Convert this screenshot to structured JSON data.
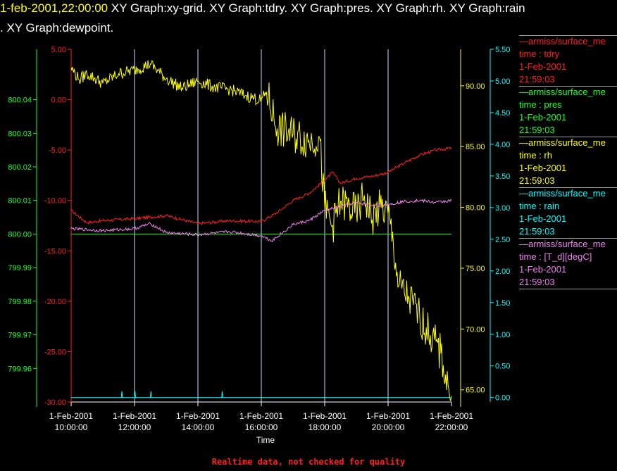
{
  "header": {
    "timestamp": "1-feb-2001,22:00:00",
    "line1": "XY Graph:xy-grid.  XY Graph:tdry.  XY Graph:pres.  XY Graph:rh.  XY Graph:rain",
    "line2": ".  XY Graph:dewpoint."
  },
  "legend": [
    {
      "source": "—armiss/surface_me",
      "label": "time : tdry",
      "date": "1-Feb-2001",
      "time": "21:59:03",
      "color": "#ff2020"
    },
    {
      "source": "—armiss/surface_me",
      "label": "time : pres",
      "date": "1-Feb-2001",
      "time": "21:59:03",
      "color": "#20ff20"
    },
    {
      "source": "—armiss/surface_me",
      "label": "time : rh",
      "date": "1-Feb-2001",
      "time": "21:59:03",
      "color": "#ffff00"
    },
    {
      "source": "—armiss/surface_me",
      "label": "time : rain",
      "date": "1-Feb-2001",
      "time": "21:59:03",
      "color": "#00ffff"
    },
    {
      "source": "—armiss/surface_me",
      "label": "time : [T_d][degC]",
      "date": "1-Feb-2001",
      "time": "21:59:03",
      "color": "#ee82ee"
    }
  ],
  "footer_note": "Realtime data, not checked for quality",
  "footer_color": "#ff2020",
  "chart_data": {
    "type": "line",
    "xlabel": "Time",
    "x_ticks": [
      {
        "date": "1-Feb-2001",
        "time": "10:00:00"
      },
      {
        "date": "1-Feb-2001",
        "time": "12:00:00"
      },
      {
        "date": "1-Feb-2001",
        "time": "14:00:00"
      },
      {
        "date": "1-Feb-2001",
        "time": "16:00:00"
      },
      {
        "date": "1-Feb-2001",
        "time": "18:00:00"
      },
      {
        "date": "1-Feb-2001",
        "time": "20:00:00"
      },
      {
        "date": "1-Feb-2001",
        "time": "22:00:00"
      }
    ],
    "xlim": [
      "1-Feb-2001 10:00",
      "1-Feb-2001 22:00"
    ],
    "grid": true,
    "axes": {
      "pres": {
        "color": "#20ff20",
        "side": "left-outer",
        "ylim": [
          799.95,
          800.055
        ],
        "ticks": [
          "799.96",
          "799.97",
          "799.98",
          "799.99",
          "800.00",
          "800.01",
          "800.02",
          "800.03",
          "800.04"
        ]
      },
      "tdry": {
        "color": "#ff2020",
        "side": "left-inner",
        "ylim": [
          -30,
          5
        ],
        "ticks": [
          "-30.00",
          "-25.00",
          "-20.00",
          "-15.00",
          "-10.00",
          "-5.00",
          "0.00",
          "5.00"
        ]
      },
      "rh": {
        "color": "#ffff00",
        "side": "right-inner",
        "ylim": [
          64,
          93
        ],
        "ticks": [
          "65.00",
          "70.00",
          "75.00",
          "80.00",
          "85.00",
          "90.00"
        ]
      },
      "rain": {
        "color": "#00ffff",
        "side": "right-outer",
        "ylim": [
          -0.07,
          5.5
        ],
        "ticks": [
          "0.00",
          "0.50",
          "1.00",
          "1.50",
          "2.00",
          "2.50",
          "3.00",
          "3.50",
          "4.00",
          "4.50",
          "5.00",
          "5.50"
        ]
      }
    },
    "series": [
      {
        "name": "tdry",
        "axis": "tdry",
        "color": "#ff2020",
        "time": [
          "10:00",
          "10:30",
          "11:00",
          "12:00",
          "13:00",
          "14:00",
          "15:00",
          "16:00",
          "16:30",
          "17:00",
          "17:30",
          "18:00",
          "18:15",
          "18:30",
          "19:00",
          "19:30",
          "20:00",
          "20:30",
          "21:00",
          "21:30",
          "22:00"
        ],
        "values": [
          -11.0,
          -12.2,
          -12.0,
          -11.8,
          -11.5,
          -12.3,
          -12.0,
          -12.1,
          -11.2,
          -10.0,
          -9.3,
          -8.0,
          -7.2,
          -8.3,
          -7.8,
          -7.6,
          -7.2,
          -6.3,
          -5.5,
          -5.0,
          -4.8
        ]
      },
      {
        "name": "pres",
        "axis": "pres",
        "color": "#20ff20",
        "time": [
          "10:00",
          "22:00"
        ],
        "values": [
          800.0,
          800.0
        ]
      },
      {
        "name": "rh",
        "axis": "rh",
        "color": "#ffff00",
        "time": [
          "10:00",
          "10:15",
          "10:30",
          "11:00",
          "11:30",
          "12:00",
          "12:30",
          "13:00",
          "13:30",
          "14:00",
          "14:30",
          "15:00",
          "15:30",
          "16:00",
          "16:10",
          "16:30",
          "17:00",
          "17:30",
          "17:50",
          "18:00",
          "18:15",
          "18:30",
          "19:00",
          "19:15",
          "19:30",
          "19:45",
          "20:00",
          "20:10",
          "20:20",
          "20:40",
          "21:00",
          "21:20",
          "21:40",
          "21:55",
          "22:00"
        ],
        "values": [
          91.5,
          90.5,
          91.0,
          90.2,
          91.0,
          91.3,
          91.8,
          90.6,
          89.8,
          90.4,
          89.9,
          89.7,
          89.2,
          88.8,
          89.5,
          86.5,
          86.0,
          85.5,
          85.8,
          80.0,
          78.5,
          80.5,
          79.5,
          81.0,
          79.0,
          80.0,
          79.5,
          77.0,
          73.5,
          72.5,
          71.0,
          69.5,
          68.0,
          65.0,
          64.5
        ]
      },
      {
        "name": "rain",
        "axis": "rain",
        "color": "#00ffff",
        "time": [
          "10:00",
          "11:35",
          "11:36",
          "11:37",
          "12:00",
          "12:01",
          "12:02",
          "12:30",
          "12:31",
          "12:32",
          "14:45",
          "14:46",
          "14:47",
          "22:00"
        ],
        "values": [
          0.0,
          0.0,
          0.1,
          0.0,
          0.0,
          0.1,
          0.0,
          0.0,
          0.1,
          0.0,
          0.0,
          0.1,
          0.0,
          0.0
        ]
      },
      {
        "name": "[T_d][degC]",
        "axis": "tdry",
        "color": "#ee82ee",
        "time": [
          "10:00",
          "11:00",
          "12:00",
          "12:30",
          "13:00",
          "14:00",
          "15:00",
          "16:00",
          "16:20",
          "17:00",
          "17:30",
          "18:00",
          "18:30",
          "19:00",
          "19:30",
          "20:00",
          "20:30",
          "21:00",
          "21:30",
          "22:00"
        ],
        "values": [
          -12.8,
          -13.0,
          -12.8,
          -12.3,
          -13.2,
          -13.4,
          -13.1,
          -13.5,
          -14.0,
          -12.4,
          -12.0,
          -11.0,
          -10.6,
          -10.2,
          -10.5,
          -10.4,
          -10.1,
          -10.0,
          -10.2,
          -10.0
        ]
      }
    ]
  }
}
